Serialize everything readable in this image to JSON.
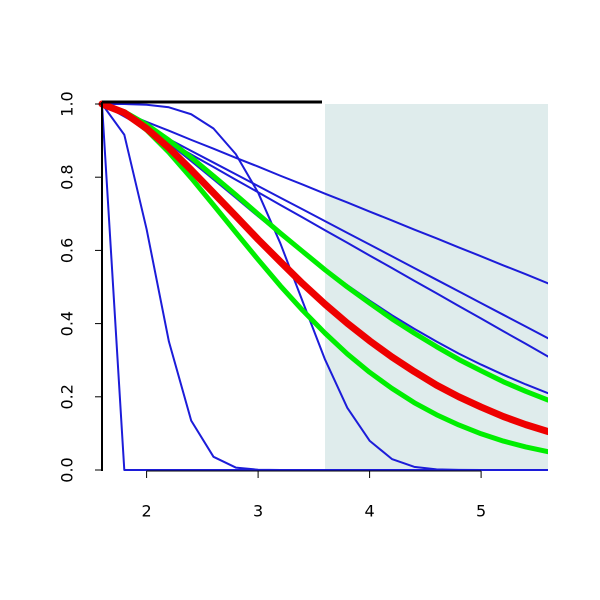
{
  "chart_data": {
    "type": "line",
    "x": [
      1.6,
      1.8,
      2.0,
      2.2,
      2.4,
      2.6,
      2.8,
      3.0,
      3.2,
      3.4,
      3.6,
      3.8,
      4.0,
      4.2,
      4.4,
      4.6,
      4.8,
      5.0,
      5.2,
      5.4,
      5.6
    ],
    "xlim": [
      1.6,
      5.6
    ],
    "xticks": [
      2,
      3,
      4,
      5
    ],
    "ylim": [
      0,
      1
    ],
    "yticks": [
      {
        "value": 0,
        "label": "0.0"
      },
      {
        "value": 0.2,
        "label": "0.2"
      },
      {
        "value": 0.4,
        "label": "0.4"
      },
      {
        "value": 0.6,
        "label": "0.6"
      },
      {
        "value": 0.8,
        "label": "0.8"
      },
      {
        "value": 1,
        "label": "1.0"
      }
    ],
    "shaded_xrange": [
      3.6,
      5.6
    ],
    "shade_color": "#dfecec",
    "series": [
      {
        "color": "#1c1cd9",
        "width": 2,
        "values": [
          1,
          0.976,
          0.951,
          0.927,
          0.902,
          0.878,
          0.853,
          0.829,
          0.804,
          0.78,
          0.755,
          0.731,
          0.706,
          0.682,
          0.657,
          0.633,
          0.608,
          0.584,
          0.559,
          0.535,
          0.51
        ]
      },
      {
        "color": "#1c1cd9",
        "width": 2,
        "values": [
          1,
          0.968,
          0.936,
          0.904,
          0.872,
          0.84,
          0.808,
          0.776,
          0.744,
          0.712,
          0.68,
          0.648,
          0.616,
          0.584,
          0.552,
          0.52,
          0.488,
          0.456,
          0.424,
          0.392,
          0.36
        ]
      },
      {
        "color": "#1c1cd9",
        "width": 2,
        "values": [
          1,
          0.966,
          0.931,
          0.897,
          0.862,
          0.828,
          0.793,
          0.759,
          0.724,
          0.69,
          0.655,
          0.621,
          0.586,
          0.552,
          0.517,
          0.483,
          0.448,
          0.414,
          0.379,
          0.345,
          0.31
        ]
      },
      {
        "color": "#1c1cd9",
        "width": 2,
        "values": [
          1,
          0.975,
          0.937,
          0.893,
          0.844,
          0.794,
          0.744,
          0.693,
          0.644,
          0.596,
          0.549,
          0.505,
          0.463,
          0.423,
          0.386,
          0.351,
          0.318,
          0.288,
          0.26,
          0.234,
          0.21
        ]
      },
      {
        "color": "#1c1cd9",
        "width": 2,
        "values": [
          1,
          1,
          0.998,
          0.991,
          0.972,
          0.933,
          0.863,
          0.758,
          0.619,
          0.46,
          0.302,
          0.17,
          0.08,
          0.03,
          0.0086,
          0.0018,
          0.0003,
          0,
          0,
          0,
          0
        ]
      },
      {
        "color": "#1c1cd9",
        "width": 2,
        "values": [
          1,
          0.916,
          0.658,
          0.351,
          0.135,
          0.036,
          0.0066,
          0.0008,
          0,
          0,
          0,
          0,
          0,
          0,
          0,
          0,
          0,
          0,
          0,
          0,
          0
        ]
      },
      {
        "color": "#1c1cd9",
        "width": 2,
        "values": [
          1,
          0,
          0,
          0,
          0,
          0,
          0,
          0,
          0,
          0,
          0,
          0,
          0,
          0,
          0,
          0,
          0,
          0,
          0,
          0,
          0
        ]
      },
      {
        "color": "#00ee00",
        "width": 5,
        "values": [
          1,
          0.979,
          0.944,
          0.901,
          0.854,
          0.803,
          0.752,
          0.699,
          0.647,
          0.597,
          0.547,
          0.5,
          0.456,
          0.413,
          0.374,
          0.337,
          0.302,
          0.271,
          0.241,
          0.215,
          0.191
        ]
      },
      {
        "color": "#00ee00",
        "width": 5,
        "values": [
          1,
          0.976,
          0.929,
          0.868,
          0.798,
          0.724,
          0.649,
          0.575,
          0.503,
          0.436,
          0.374,
          0.317,
          0.267,
          0.223,
          0.184,
          0.151,
          0.123,
          0.099,
          0.079,
          0.063,
          0.05
        ]
      },
      {
        "color": "#ee0000",
        "width": 7,
        "values": [
          1,
          0.976,
          0.933,
          0.88,
          0.82,
          0.757,
          0.694,
          0.63,
          0.569,
          0.509,
          0.453,
          0.401,
          0.353,
          0.309,
          0.269,
          0.232,
          0.2,
          0.172,
          0.146,
          0.124,
          0.105
        ]
      }
    ]
  }
}
